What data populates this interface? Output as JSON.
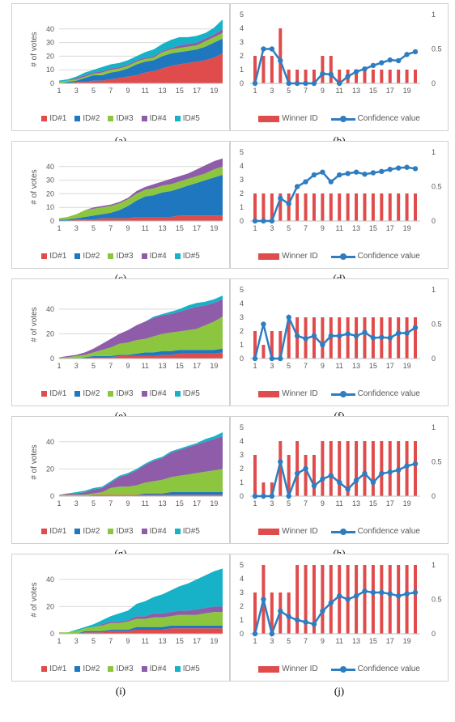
{
  "colors": {
    "id1": "#e04c4c",
    "id2": "#1f77c0",
    "id3": "#8cc63f",
    "id4": "#8e5ca8",
    "id5": "#17b2c8",
    "bar": "#e04c4c",
    "line": "#2e7dc0"
  },
  "area_legend": [
    "ID#1",
    "ID#2",
    "ID#3",
    "ID#4",
    "ID#5"
  ],
  "bar_legend": {
    "bars": "Winner ID",
    "line": "Confidence value"
  },
  "chart_data": [
    {
      "type": "area",
      "caption": "(a)",
      "ylabel": "# of votes",
      "ylim": [
        0,
        50
      ],
      "yticks": [
        0,
        10,
        20,
        30,
        40
      ],
      "x": [
        1,
        2,
        3,
        4,
        5,
        6,
        7,
        8,
        9,
        10,
        11,
        12,
        13,
        14,
        15,
        16,
        17,
        18,
        19,
        20
      ],
      "series": [
        {
          "name": "ID#1",
          "values": [
            0,
            0,
            1,
            1,
            2,
            2,
            3,
            4,
            5,
            6,
            8,
            9,
            11,
            13,
            14,
            15,
            16,
            17,
            19,
            22
          ]
        },
        {
          "name": "ID#2",
          "values": [
            0,
            1,
            1,
            3,
            4,
            4,
            5,
            5,
            6,
            8,
            8,
            8,
            9,
            9,
            9,
            9,
            9,
            10,
            11,
            11
          ]
        },
        {
          "name": "ID#3",
          "values": [
            1,
            1,
            1,
            1,
            1,
            2,
            2,
            2,
            2,
            2,
            2,
            2,
            3,
            3,
            3,
            3,
            3,
            4,
            4,
            4
          ]
        },
        {
          "name": "ID#4",
          "values": [
            0,
            0,
            1,
            1,
            1,
            1,
            1,
            1,
            1,
            1,
            1,
            1,
            1,
            1,
            2,
            2,
            2,
            2,
            2,
            3
          ]
        },
        {
          "name": "ID#5",
          "values": [
            1,
            1,
            1,
            2,
            2,
            3,
            3,
            3,
            3,
            3,
            4,
            5,
            5,
            6,
            6,
            5,
            5,
            4,
            5,
            7
          ]
        }
      ]
    },
    {
      "type": "bar_line",
      "caption": "(b)",
      "ylim": [
        0,
        5
      ],
      "y2lim": [
        0,
        1
      ],
      "x": [
        1,
        2,
        3,
        4,
        5,
        6,
        7,
        8,
        9,
        10,
        11,
        12,
        13,
        14,
        15,
        16,
        17,
        18,
        19,
        20
      ],
      "winner": [
        2,
        2,
        2,
        4,
        1,
        1,
        1,
        1,
        2,
        2,
        1,
        1,
        1,
        1,
        1,
        1,
        1,
        1,
        1,
        1
      ],
      "confidence": [
        0,
        0.5,
        0.5,
        0.33,
        0,
        0,
        0,
        0,
        0.14,
        0.13,
        0,
        0.1,
        0.17,
        0.21,
        0.26,
        0.3,
        0.34,
        0.33,
        0.42,
        0.46
      ]
    },
    {
      "type": "area",
      "caption": "(c)",
      "ylabel": "# of votes",
      "ylim": [
        0,
        50
      ],
      "yticks": [
        0,
        10,
        20,
        30,
        40
      ],
      "x": [
        1,
        2,
        3,
        4,
        5,
        6,
        7,
        8,
        9,
        10,
        11,
        12,
        13,
        14,
        15,
        16,
        17,
        18,
        19,
        20
      ],
      "series": [
        {
          "name": "ID#1",
          "values": [
            0,
            0,
            1,
            1,
            1,
            2,
            2,
            2,
            2,
            3,
            3,
            3,
            3,
            3,
            4,
            4,
            4,
            4,
            4,
            4
          ]
        },
        {
          "name": "ID#2",
          "values": [
            1,
            1,
            1,
            2,
            3,
            3,
            4,
            6,
            9,
            12,
            15,
            16,
            18,
            19,
            20,
            22,
            24,
            26,
            28,
            30
          ]
        },
        {
          "name": "ID#3",
          "values": [
            1,
            2,
            3,
            5,
            5,
            5,
            5,
            5,
            5,
            5,
            5,
            5,
            5,
            5,
            5,
            5,
            5,
            5,
            6,
            6
          ]
        },
        {
          "name": "ID#4",
          "values": [
            0,
            0,
            0,
            0,
            1,
            1,
            1,
            1,
            1,
            2,
            2,
            3,
            3,
            4,
            4,
            4,
            5,
            6,
            6,
            6
          ]
        },
        {
          "name": "ID#5",
          "values": [
            0,
            0,
            0,
            0,
            0,
            0,
            0,
            0,
            0,
            0,
            0,
            0,
            0,
            0,
            0,
            0,
            0,
            0,
            0,
            0
          ]
        }
      ]
    },
    {
      "type": "bar_line",
      "caption": "(d)",
      "ylim": [
        0,
        5
      ],
      "y2lim": [
        0,
        1
      ],
      "x": [
        1,
        2,
        3,
        4,
        5,
        6,
        7,
        8,
        9,
        10,
        11,
        12,
        13,
        14,
        15,
        16,
        17,
        18,
        19,
        20
      ],
      "winner": [
        2,
        2,
        2,
        2,
        2,
        2,
        2,
        2,
        2,
        2,
        2,
        2,
        2,
        2,
        2,
        2,
        2,
        2,
        2,
        2
      ],
      "confidence": [
        0,
        0,
        0,
        0.33,
        0.25,
        0.5,
        0.57,
        0.67,
        0.71,
        0.57,
        0.67,
        0.69,
        0.71,
        0.68,
        0.7,
        0.72,
        0.75,
        0.77,
        0.78,
        0.76
      ]
    },
    {
      "type": "area",
      "caption": "(e)",
      "ylabel": "# of votes",
      "ylim": [
        0,
        55
      ],
      "yticks": [
        0,
        20,
        40
      ],
      "x": [
        1,
        2,
        3,
        4,
        5,
        6,
        7,
        8,
        9,
        10,
        11,
        12,
        13,
        14,
        15,
        16,
        17,
        18,
        19,
        20
      ],
      "series": [
        {
          "name": "ID#1",
          "values": [
            0,
            0,
            0,
            0,
            1,
            1,
            1,
            2,
            2,
            2,
            2,
            2,
            3,
            3,
            4,
            4,
            4,
            4,
            4,
            5
          ]
        },
        {
          "name": "ID#2",
          "values": [
            0,
            0,
            0,
            1,
            1,
            1,
            1,
            1,
            1,
            2,
            3,
            3,
            3,
            3,
            3,
            3,
            3,
            3,
            3,
            3
          ]
        },
        {
          "name": "ID#3",
          "values": [
            1,
            1,
            2,
            2,
            3,
            5,
            7,
            9,
            10,
            11,
            11,
            13,
            14,
            15,
            15,
            16,
            17,
            20,
            23,
            26
          ]
        },
        {
          "name": "ID#4",
          "values": [
            0,
            1,
            1,
            2,
            3,
            5,
            7,
            8,
            10,
            12,
            14,
            15,
            15,
            15,
            16,
            17,
            18,
            16,
            15,
            14
          ]
        },
        {
          "name": "ID#5",
          "values": [
            0,
            0,
            0,
            0,
            0,
            0,
            0,
            0,
            0,
            0,
            0,
            1,
            1,
            2,
            2,
            3,
            3,
            3,
            3,
            3
          ]
        }
      ]
    },
    {
      "type": "bar_line",
      "caption": "(f)",
      "ylim": [
        0,
        5
      ],
      "y2lim": [
        0,
        1
      ],
      "x": [
        1,
        2,
        3,
        4,
        5,
        6,
        7,
        8,
        9,
        10,
        11,
        12,
        13,
        14,
        15,
        16,
        17,
        18,
        19,
        20
      ],
      "winner": [
        2,
        1,
        2,
        2,
        3,
        3,
        3,
        3,
        3,
        3,
        3,
        3,
        3,
        3,
        3,
        3,
        3,
        3,
        3,
        3
      ],
      "confidence": [
        0,
        0.5,
        0,
        0,
        0.6,
        0.33,
        0.29,
        0.33,
        0.2,
        0.33,
        0.33,
        0.36,
        0.33,
        0.38,
        0.3,
        0.31,
        0.3,
        0.37,
        0.37,
        0.45
      ]
    },
    {
      "type": "area",
      "caption": "(g)",
      "ylabel": "# of votes",
      "ylim": [
        0,
        50
      ],
      "yticks": [
        0,
        20,
        40
      ],
      "x": [
        1,
        2,
        3,
        4,
        5,
        6,
        7,
        8,
        9,
        10,
        11,
        12,
        13,
        14,
        15,
        16,
        17,
        18,
        19,
        20
      ],
      "series": [
        {
          "name": "ID#1",
          "values": [
            0,
            0,
            0,
            0,
            1,
            1,
            1,
            1,
            1,
            1,
            1,
            1,
            1,
            1,
            1,
            1,
            1,
            1,
            1,
            1
          ]
        },
        {
          "name": "ID#2",
          "values": [
            0,
            0,
            0,
            0,
            0,
            0,
            0,
            0,
            0,
            0,
            1,
            1,
            1,
            2,
            2,
            2,
            2,
            2,
            2,
            2
          ]
        },
        {
          "name": "ID#3",
          "values": [
            1,
            1,
            1,
            1,
            1,
            2,
            5,
            6,
            6,
            7,
            8,
            9,
            10,
            11,
            12,
            13,
            14,
            15,
            16,
            17
          ]
        },
        {
          "name": "ID#4",
          "values": [
            0,
            1,
            1,
            2,
            3,
            3,
            4,
            7,
            9,
            11,
            13,
            15,
            16,
            18,
            19,
            20,
            21,
            22,
            23,
            24
          ]
        },
        {
          "name": "ID#5",
          "values": [
            0,
            0,
            1,
            1,
            1,
            1,
            1,
            1,
            1,
            1,
            1,
            1,
            1,
            1,
            1,
            1,
            1,
            2,
            2,
            3
          ]
        }
      ]
    },
    {
      "type": "bar_line",
      "caption": "(h)",
      "ylim": [
        0,
        5
      ],
      "y2lim": [
        0,
        1
      ],
      "x": [
        1,
        2,
        3,
        4,
        5,
        6,
        7,
        8,
        9,
        10,
        11,
        12,
        13,
        14,
        15,
        16,
        17,
        18,
        19,
        20
      ],
      "winner": [
        3,
        1,
        1,
        4,
        3,
        4,
        3,
        3,
        4,
        4,
        4,
        4,
        4,
        4,
        4,
        4,
        4,
        4,
        4,
        4
      ],
      "confidence": [
        0,
        0,
        0,
        0.5,
        0,
        0.33,
        0.4,
        0.15,
        0.25,
        0.3,
        0.2,
        0.1,
        0.23,
        0.33,
        0.2,
        0.33,
        0.35,
        0.38,
        0.44,
        0.47
      ]
    },
    {
      "type": "area",
      "caption": "(i)",
      "ylabel": "# of votes",
      "ylim": [
        0,
        50
      ],
      "yticks": [
        0,
        20,
        40
      ],
      "x": [
        1,
        2,
        3,
        4,
        5,
        6,
        7,
        8,
        9,
        10,
        11,
        12,
        13,
        14,
        15,
        16,
        17,
        18,
        19,
        20
      ],
      "series": [
        {
          "name": "ID#1",
          "values": [
            0,
            0,
            0,
            1,
            1,
            1,
            2,
            2,
            2,
            3,
            3,
            3,
            3,
            4,
            4,
            4,
            4,
            4,
            4,
            4
          ]
        },
        {
          "name": "ID#2",
          "values": [
            0,
            0,
            0,
            1,
            1,
            1,
            1,
            1,
            1,
            2,
            2,
            2,
            2,
            2,
            2,
            2,
            2,
            2,
            2,
            2
          ]
        },
        {
          "name": "ID#3",
          "values": [
            1,
            1,
            2,
            2,
            3,
            4,
            5,
            5,
            6,
            6,
            6,
            7,
            7,
            7,
            8,
            8,
            8,
            9,
            10,
            10
          ]
        },
        {
          "name": "ID#4",
          "values": [
            0,
            0,
            0,
            0,
            0,
            1,
            1,
            1,
            1,
            2,
            2,
            3,
            3,
            3,
            3,
            3,
            4,
            4,
            4,
            4
          ]
        },
        {
          "name": "ID#5",
          "values": [
            0,
            0,
            1,
            1,
            2,
            3,
            4,
            6,
            7,
            9,
            11,
            12,
            14,
            16,
            18,
            20,
            22,
            24,
            26,
            28
          ]
        }
      ]
    },
    {
      "type": "bar_line",
      "caption": "(j)",
      "ylim": [
        0,
        5
      ],
      "y2lim": [
        0,
        1
      ],
      "x": [
        1,
        2,
        3,
        4,
        5,
        6,
        7,
        8,
        9,
        10,
        11,
        12,
        13,
        14,
        15,
        16,
        17,
        18,
        19,
        20
      ],
      "winner": [
        3,
        5,
        3,
        3,
        3,
        5,
        5,
        5,
        5,
        5,
        5,
        5,
        5,
        5,
        5,
        5,
        5,
        5,
        5,
        5
      ],
      "confidence": [
        0,
        0.5,
        0,
        0.33,
        0.25,
        0.2,
        0.17,
        0.14,
        0.33,
        0.45,
        0.55,
        0.5,
        0.55,
        0.62,
        0.6,
        0.6,
        0.58,
        0.55,
        0.58,
        0.6
      ]
    }
  ]
}
